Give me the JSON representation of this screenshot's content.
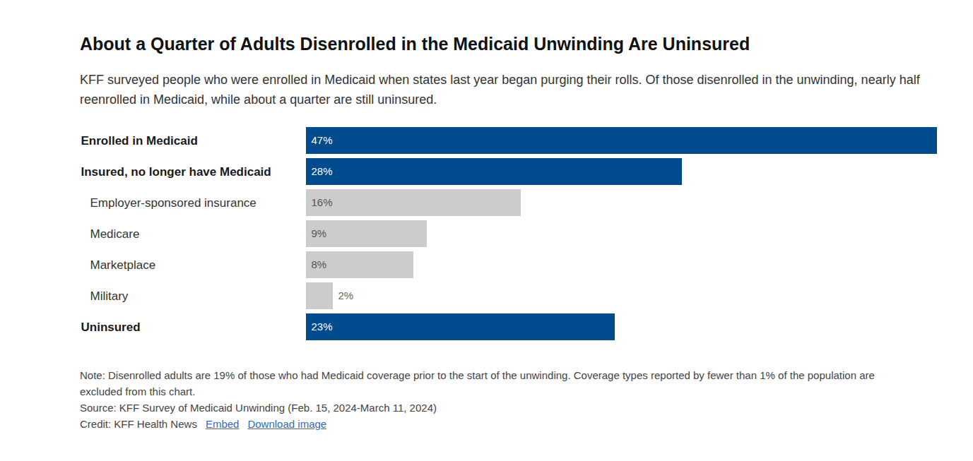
{
  "chart_data": {
    "type": "bar",
    "title": "About a Quarter of Adults Disenrolled in the Medicaid Unwinding Are Uninsured",
    "subtitle": "KFF surveyed people who were enrolled in Medicaid when states last year began purging their rolls. Of those disenrolled in the unwinding, nearly half reenrolled in Medicaid, while about a quarter are still uninsured.",
    "categories": [
      "Enrolled in Medicaid",
      "Insured, no longer have Medicaid",
      "Employer-sponsored insurance",
      "Medicare",
      "Marketplace",
      "Military",
      "Uninsured"
    ],
    "values": [
      47,
      28,
      16,
      9,
      8,
      2,
      23
    ],
    "value_labels": [
      "47%",
      "28%",
      "16%",
      "9%",
      "8%",
      "2%",
      "23%"
    ],
    "colors": [
      "#004b8d",
      "#004b8d",
      "#cccccc",
      "#cccccc",
      "#cccccc",
      "#cccccc",
      "#004b8d"
    ],
    "orientation": "horizontal",
    "xlim": [
      0,
      47
    ],
    "data_labels": true,
    "tick_labels": "y",
    "grid": false,
    "note": "Note: Disenrolled adults are 19% of those who had Medicaid coverage prior to the start of the unwinding. Coverage types reported by fewer than 1% of the population are excluded from this chart.",
    "source": "Source: KFF Survey of Medicaid Unwinding (Feb. 15, 2024-March 11, 2024)",
    "credit": "Credit: KFF Health News",
    "links": [
      "Embed",
      "Download image"
    ]
  }
}
